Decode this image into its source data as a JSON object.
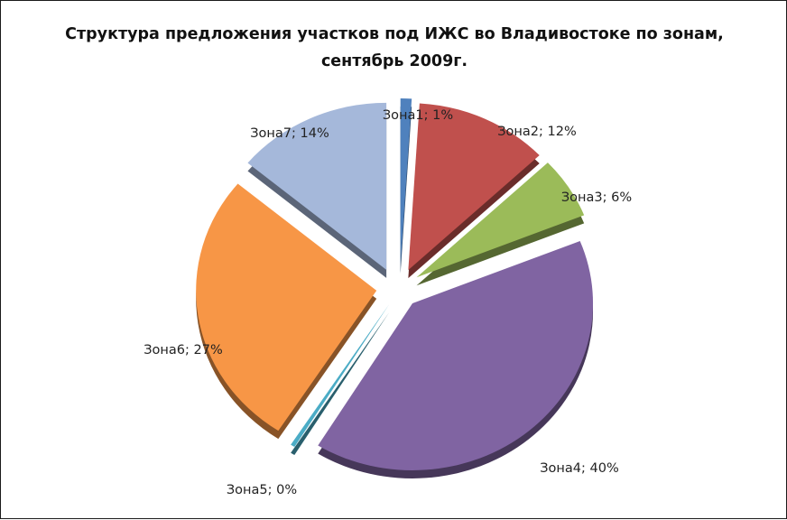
{
  "chart_data": {
    "type": "pie",
    "variant": "exploded-3d",
    "title": "Структура предложения участков под ИЖС во Владивостоке по зонам, сентябрь 2009г.",
    "slices": [
      {
        "name": "Зона1",
        "value": 1,
        "label": "Зона1; 1%",
        "color": "#4f81bd"
      },
      {
        "name": "Зона2",
        "value": 12,
        "label": "Зона2; 12%",
        "color": "#c0504d"
      },
      {
        "name": "Зона3",
        "value": 6,
        "label": "Зона3; 6%",
        "color": "#9bbb59"
      },
      {
        "name": "Зона4",
        "value": 40,
        "label": "Зона4; 40%",
        "color": "#8064a2"
      },
      {
        "name": "Зона5",
        "value": 0,
        "label": "Зона5; 0%",
        "color": "#4bacc6"
      },
      {
        "name": "Зона6",
        "value": 27,
        "label": "Зона6; 27%",
        "color": "#f79646"
      },
      {
        "name": "Зона7",
        "value": 14,
        "label": "Зона7; 14%",
        "color": "#a5b8da"
      }
    ],
    "legend": "none"
  }
}
